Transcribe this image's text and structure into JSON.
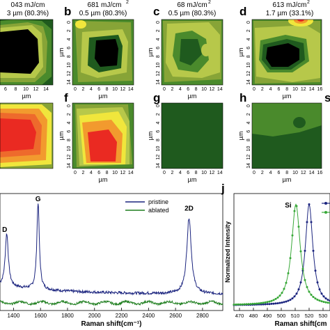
{
  "figure": {
    "panels": [
      {
        "letter": "",
        "title_line1": "043 mJ/cm",
        "title_line2": "3 µm (80.3%)"
      },
      {
        "letter": "b",
        "title_line1": "681 mJ/cm",
        "title_line2": "0.5 µm (80.3%)"
      },
      {
        "letter": "c",
        "title_line1": "68 mJ/cm",
        "title_line2": "0.5 µm (80.3%)"
      },
      {
        "letter": "d",
        "title_line1": "613 mJ/cm",
        "title_line2": "1.7 µm (33.1%)"
      },
      {
        "letter": "f"
      },
      {
        "letter": "g"
      },
      {
        "letter": "h"
      },
      {
        "letter": "s"
      }
    ],
    "superscript": "2",
    "axis_unit": "µm",
    "y_ticks": [
      "0",
      "2",
      "4",
      "6",
      "8",
      "10",
      "12",
      "14"
    ],
    "x_ticks": [
      "0",
      "2",
      "4",
      "6",
      "8",
      "10",
      "12",
      "14"
    ],
    "x_ticks_clip": [
      "6",
      "8",
      "10",
      "12",
      "14"
    ],
    "x_ticks_d": [
      "0",
      "2",
      "4",
      "6",
      "8",
      "10",
      "12",
      "14",
      "16"
    ],
    "letter_j": "j"
  },
  "colors": {
    "black": "#000000",
    "dark_green": "#1f5a1e",
    "mid_green": "#4a8a2c",
    "olive": "#87a437",
    "yellow_green": "#b7c84a",
    "yellow": "#f0e63c",
    "orange": "#f29a2e",
    "red": "#ea2a22",
    "pristine": "#1a237e",
    "ablated": "#1e7e1e",
    "j_blue": "#1a237e",
    "j_green": "#38a838"
  },
  "chart_data": [
    {
      "type": "line",
      "panel": "raman-spectrum",
      "xlabel": "Raman shift(cm⁻¹)",
      "xlim": [
        1300,
        2950
      ],
      "x_ticks": [
        1400,
        1600,
        1800,
        2000,
        2200,
        2400,
        2600,
        2800
      ],
      "legend": "top-right",
      "annotations": [
        "D",
        "G",
        "2D"
      ],
      "series": [
        {
          "name": "pristine",
          "peaks": [
            {
              "x": 1350,
              "height": 0.5
            },
            {
              "x": 1582,
              "height": 0.82
            },
            {
              "x": 2700,
              "height": 0.72
            }
          ],
          "baseline": 0.1
        },
        {
          "name": "ablated",
          "baseline": 0.0
        }
      ]
    },
    {
      "type": "line",
      "panel": "j",
      "xlabel": "Raman shift(cm",
      "ylabel": "Normalized Intensity",
      "xlim": [
        466,
        535
      ],
      "x_ticks": [
        470,
        480,
        490,
        500,
        510,
        520,
        530
      ],
      "annotations": [
        "Si"
      ],
      "legend": "top-right",
      "series": [
        {
          "peak_center": 520,
          "width": 6.5,
          "color": "blue"
        },
        {
          "peak_center": 510.5,
          "width": 7.5,
          "color": "green"
        }
      ]
    }
  ]
}
